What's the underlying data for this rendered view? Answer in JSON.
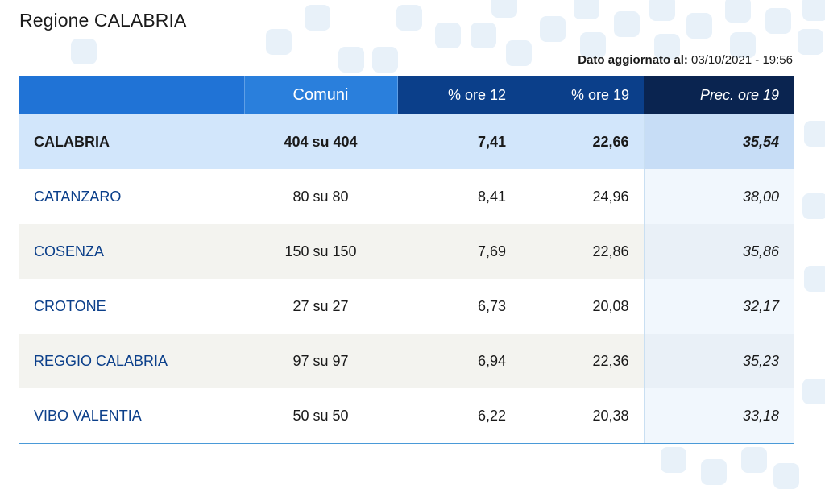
{
  "page": {
    "title": "Regione CALABRIA",
    "updated_label": "Dato aggiornato al:",
    "updated_value": "03/10/2021 - 19:56"
  },
  "table": {
    "headers": {
      "name": "",
      "comuni": "Comuni",
      "ore12": "% ore 12",
      "ore19": "% ore 19",
      "prec19": "Prec. ore 19"
    },
    "total": {
      "name": "CALABRIA",
      "comuni": "404 su 404",
      "ore12": "7,41",
      "ore19": "22,66",
      "prec19": "35,54"
    },
    "rows": [
      {
        "name": "CATANZARO",
        "comuni": "80 su 80",
        "ore12": "8,41",
        "ore19": "24,96",
        "prec19": "38,00"
      },
      {
        "name": "COSENZA",
        "comuni": "150 su 150",
        "ore12": "7,69",
        "ore19": "22,86",
        "prec19": "35,86"
      },
      {
        "name": "CROTONE",
        "comuni": "27 su 27",
        "ore12": "6,73",
        "ore19": "20,08",
        "prec19": "32,17"
      },
      {
        "name": "REGGIO CALABRIA",
        "comuni": "97 su 97",
        "ore12": "6,94",
        "ore19": "22,36",
        "prec19": "35,23"
      },
      {
        "name": "VIBO VALENTIA",
        "comuni": "50 su 50",
        "ore12": "6,22",
        "ore19": "20,38",
        "prec19": "33,18"
      }
    ]
  },
  "colors": {
    "header_blue": "#2073d6",
    "header_dark": "#0b3f8a",
    "header_darkest": "#0a2450",
    "total_row": "#d2e6fb",
    "link_text": "#0b3f8a"
  }
}
